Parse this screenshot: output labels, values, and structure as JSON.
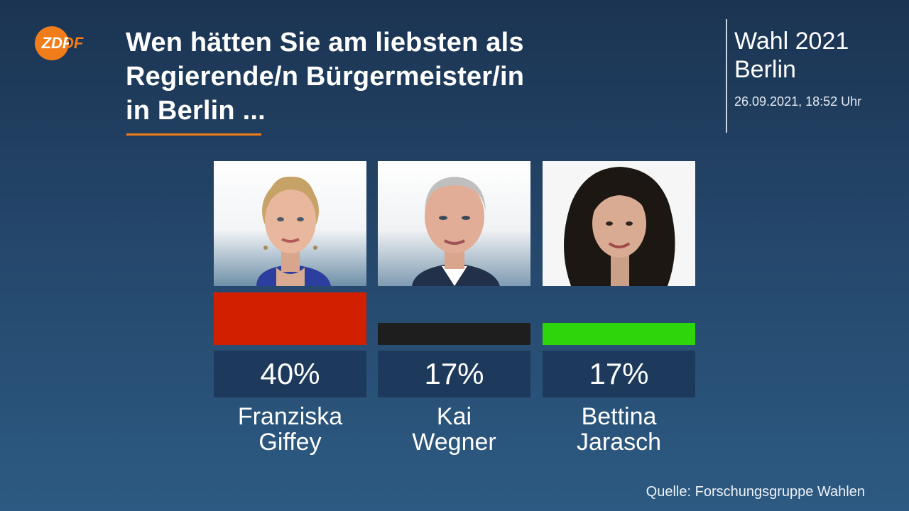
{
  "broadcaster": {
    "logo_text": "ZDF"
  },
  "header": {
    "title": "Wen hätten Sie am liebsten als Regierende/n Bürgermeister/in in Berlin ...",
    "title_lines": [
      "Wen hätten Sie am liebsten als",
      "Regierende/n Bürgermeister/in",
      "in Berlin ..."
    ]
  },
  "election": {
    "line1": "Wahl 2021",
    "line2": "Berlin",
    "timestamp": "26.09.2021, 18:52 Uhr"
  },
  "source": "Quelle: Forschungsgruppe Wahlen",
  "colors": {
    "accent": "#f07d1a",
    "spd": "#d21f00",
    "cdu": "#1e1e1e",
    "gruene": "#2cd60a"
  },
  "chart_data": {
    "type": "bar",
    "title": "Wen hätten Sie am liebsten als Regierende/n Bürgermeister/in in Berlin ...",
    "categories": [
      "Franziska Giffey",
      "Kai Wegner",
      "Bettina Jarasch"
    ],
    "values": [
      40,
      17,
      17
    ],
    "unit": "%",
    "value_labels": [
      "40%",
      "17%",
      "17%"
    ],
    "ylim": [
      0,
      40
    ],
    "grid": false,
    "legend": "none",
    "bar_colors": [
      "#d21f00",
      "#1e1e1e",
      "#2cd60a"
    ],
    "candidates": [
      {
        "first_name": "Franziska",
        "last_name": "Giffey",
        "value": 40,
        "value_label": "40%",
        "color": "#d21f00"
      },
      {
        "first_name": "Kai",
        "last_name": "Wegner",
        "value": 17,
        "value_label": "17%",
        "color": "#1e1e1e"
      },
      {
        "first_name": "Bettina",
        "last_name": "Jarasch",
        "value": 17,
        "value_label": "17%",
        "color": "#2cd60a"
      }
    ]
  }
}
